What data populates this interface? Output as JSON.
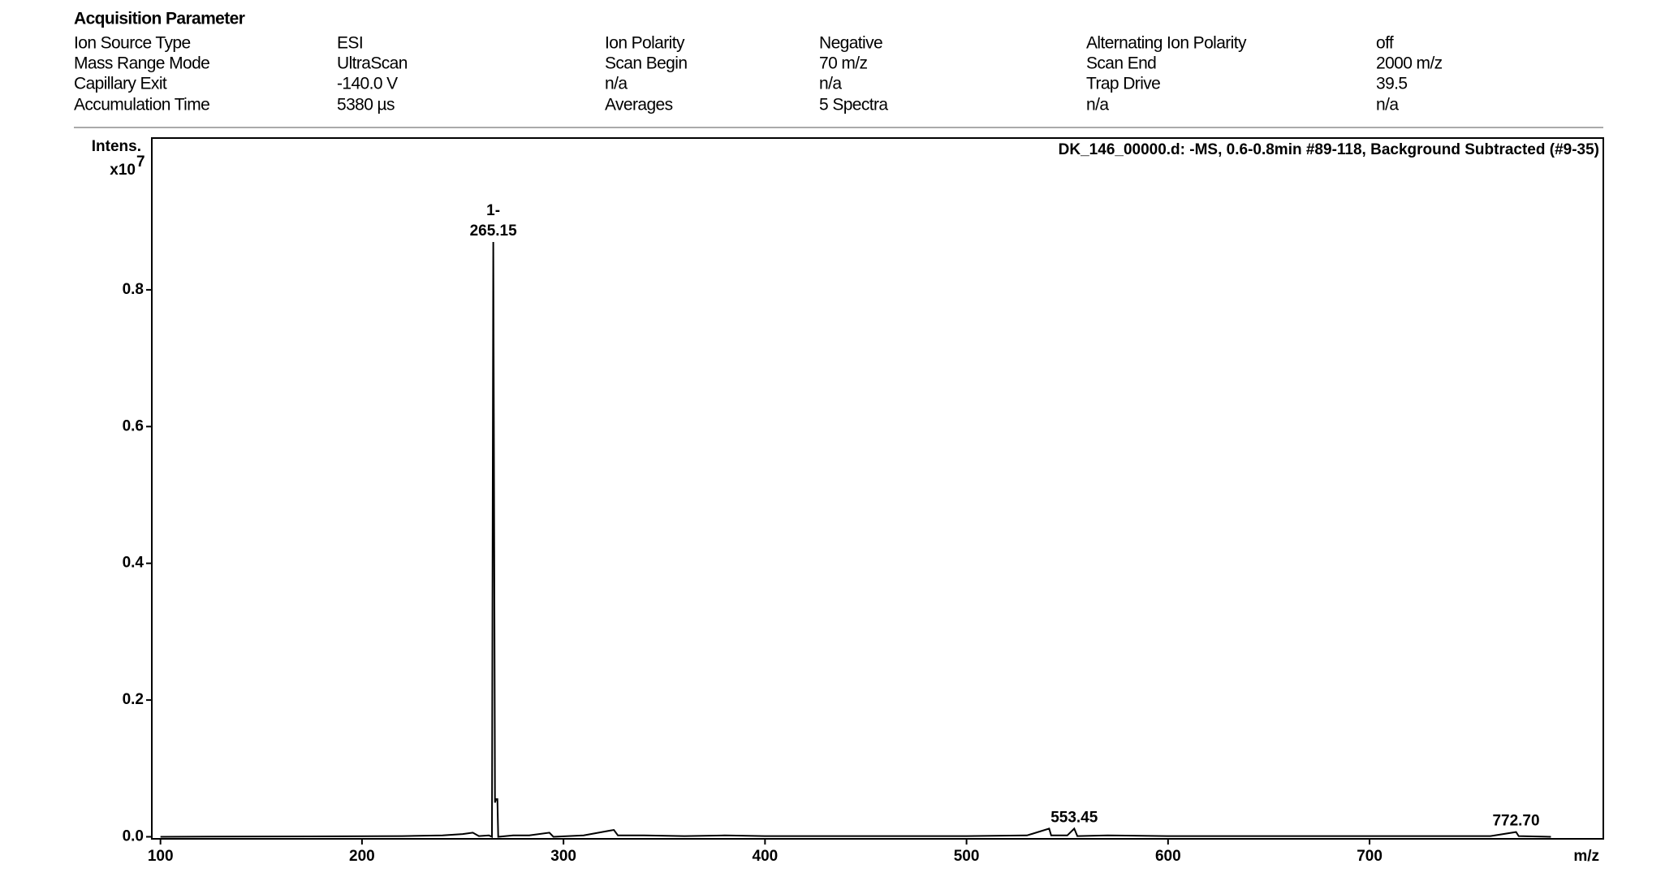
{
  "header": {
    "title": "Acquisition Parameter",
    "rows": [
      [
        "Ion Source Type",
        "ESI",
        "Ion Polarity",
        "Negative",
        "Alternating Ion Polarity",
        "off"
      ],
      [
        "Mass Range Mode",
        "UltraScan",
        "Scan Begin",
        "70 m/z",
        "Scan End",
        "2000 m/z"
      ],
      [
        "Capillary Exit",
        "-140.0 V",
        "n/a",
        "n/a",
        "Trap Drive",
        "39.5"
      ],
      [
        "Accumulation Time",
        "5380 µs",
        "Averages",
        "5 Spectra",
        "n/a",
        "n/a"
      ]
    ]
  },
  "chart_data": {
    "type": "line",
    "title": "DK_146_00000.d: -MS, 0.6-0.8min #89-118, Background Subtracted (#9-35)",
    "xlabel": "m/z",
    "ylabel": "Intens.",
    "yscale_base": "x10",
    "yscale_exponent": "7",
    "color": "#000000",
    "x": [
      100,
      220,
      240,
      250,
      255,
      258,
      263,
      264.5,
      265.15,
      265.6,
      266.0,
      266.5,
      267.2,
      267.6,
      275,
      283,
      293,
      295,
      310,
      323,
      325,
      327,
      340,
      360,
      380,
      400,
      450,
      500,
      530,
      541,
      542,
      550,
      553.45,
      555,
      570,
      600,
      650,
      700,
      730,
      760,
      772.7,
      774,
      790
    ],
    "values": [
      0,
      0.001,
      0.002,
      0.004,
      0.006,
      0.001,
      0.002,
      0,
      0.87,
      0.45,
      0.05,
      0.055,
      0.055,
      0,
      0.002,
      0.002,
      0.006,
      0,
      0.002,
      0.009,
      0.01,
      0.002,
      0.002,
      0.001,
      0.002,
      0.001,
      0.001,
      0.001,
      0.002,
      0.012,
      0.002,
      0.002,
      0.012,
      0.001,
      0.002,
      0.001,
      0.001,
      0.001,
      0.001,
      0.001,
      0.007,
      0.001,
      0
    ],
    "annotations": [
      {
        "x": 265.15,
        "y": 0.87,
        "charge": "1-",
        "label": "265.15"
      },
      {
        "x": 553.45,
        "y": 0.012,
        "label": "553.45"
      },
      {
        "x": 772.7,
        "y": 0.007,
        "label": "772.70"
      }
    ],
    "xlim": [
      95.7,
      816
    ],
    "ylim": [
      -0.003,
      1.022
    ],
    "xticks": [
      100,
      200,
      300,
      400,
      500,
      600,
      700
    ],
    "yticks": [
      {
        "value": 0,
        "label": "0.0"
      },
      0.2,
      0.4,
      0.6,
      0.8
    ]
  }
}
